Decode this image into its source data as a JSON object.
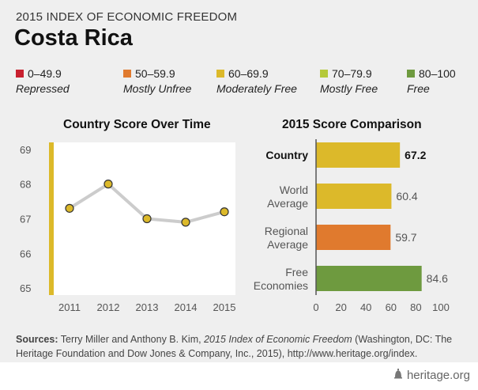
{
  "header": {
    "title": "2015 INDEX OF ECONOMIC FREEDOM",
    "country": "Costa Rica"
  },
  "legend": [
    {
      "range": "0–49.9",
      "label": "Repressed",
      "color": "#c8202f"
    },
    {
      "range": "50–59.9",
      "label": "Mostly Unfree",
      "color": "#e07a2e"
    },
    {
      "range": "60–69.9",
      "label": "Moderately Free",
      "color": "#dcb92a"
    },
    {
      "range": "70–79.9",
      "label": "Mostly Free",
      "color": "#b5c93a"
    },
    {
      "range": "80–100",
      "label": "Free",
      "color": "#6e9a3f"
    }
  ],
  "chart_data": [
    {
      "type": "line",
      "title": "Country Score Over Time",
      "x": [
        "2011",
        "2012",
        "2013",
        "2014",
        "2015"
      ],
      "series": [
        {
          "values": [
            67.3,
            68.0,
            67.0,
            66.9,
            67.2
          ]
        }
      ],
      "ylim": [
        64.8,
        69.2
      ],
      "yticks": [
        65,
        66,
        67,
        68,
        69
      ],
      "band": {
        "from": 64.8,
        "to": 69.2,
        "color": "#dcb92a"
      },
      "line_color": "#cccccc",
      "marker_color": "#dcb92a"
    },
    {
      "type": "bar",
      "orientation": "horizontal",
      "title": "2015 Score Comparison",
      "categories": [
        "Country",
        "World Average",
        "Regional Average",
        "Free Economies"
      ],
      "values": [
        67.2,
        60.4,
        59.7,
        84.6
      ],
      "value_labels": [
        "67.2",
        "60.4",
        "59.7",
        "84.6"
      ],
      "colors": [
        "#dcb92a",
        "#dcb92a",
        "#e07a2e",
        "#6e9a3f"
      ],
      "xlim": [
        0,
        100
      ],
      "xticks": [
        0,
        20,
        40,
        60,
        80,
        100
      ],
      "highlight_first": true
    }
  ],
  "sources": {
    "prefix": "Sources:",
    "text_before": " Terry Miller and Anthony B. Kim, ",
    "italic": "2015 Index of Economic Freedom",
    "text_after": " (Washington, DC: The Heritage Foundation and Dow Jones & Company, Inc., 2015), http://www.heritage.org/index."
  },
  "footer": {
    "brand": "heritage.org",
    "icon": "liberty-bell-icon"
  }
}
